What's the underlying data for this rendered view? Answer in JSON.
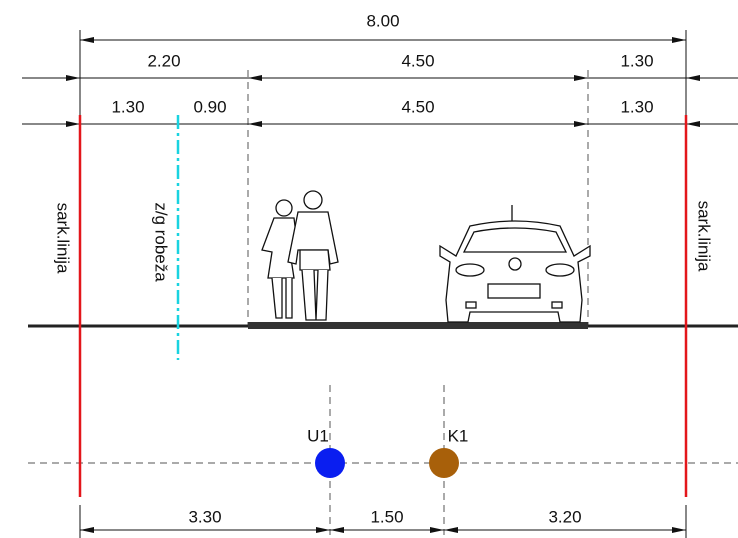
{
  "dimensions": {
    "total": "8.00",
    "row1": [
      "2.20",
      "4.50",
      "1.30"
    ],
    "row2": [
      "1.30",
      "0.90",
      "4.50",
      "1.30"
    ],
    "bottom": [
      "3.30",
      "1.50",
      "3.20"
    ]
  },
  "labels": {
    "left_line": "sark.linija",
    "boundary": "z/g robeža",
    "right_line": "sark.linija"
  },
  "points": [
    {
      "label": "U1"
    },
    {
      "label": "K1"
    }
  ]
}
